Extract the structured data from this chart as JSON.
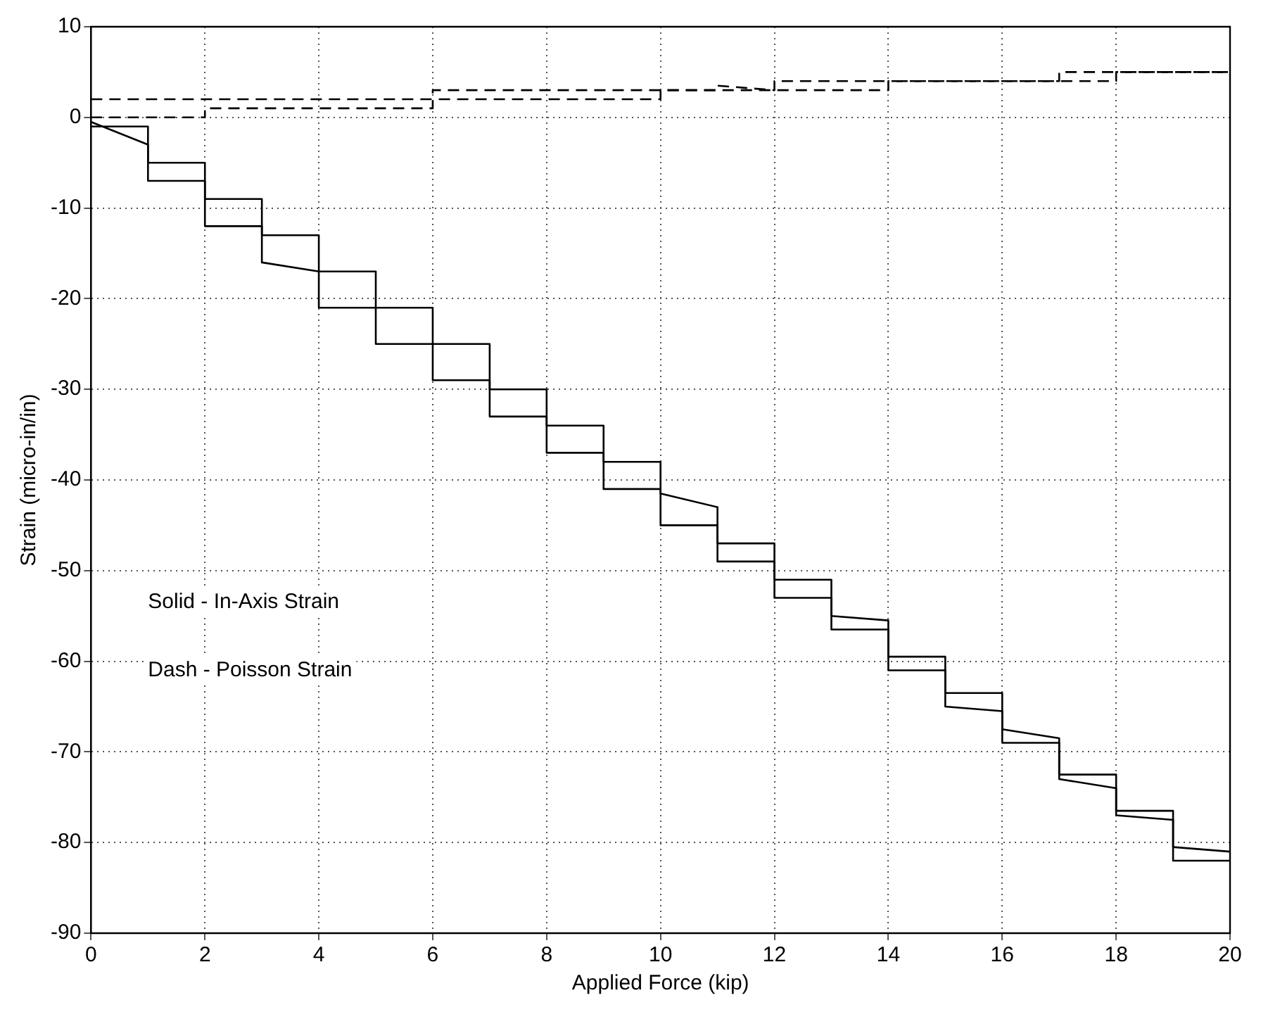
{
  "chart_data": {
    "type": "line",
    "xlabel": "Applied Force (kip)",
    "ylabel": "Strain (micro-in/in)",
    "xlim": [
      0,
      20
    ],
    "xticks": [
      0,
      2,
      4,
      6,
      8,
      10,
      12,
      14,
      16,
      18,
      20
    ],
    "ylim": [
      -90,
      10
    ],
    "yticks": [
      -90,
      -80,
      -70,
      -60,
      -50,
      -40,
      -30,
      -20,
      -10,
      0,
      10
    ],
    "grid": true,
    "legend": false,
    "marker": "none",
    "annotations": [
      "Solid - In-Axis Strain",
      "Dash - Poisson Strain"
    ],
    "series": [
      {
        "color": "#000000",
        "line_style": "solid",
        "x": [
          0,
          1,
          1,
          2,
          2,
          3,
          3,
          4,
          4,
          5,
          5,
          6,
          6,
          7,
          7,
          8,
          8,
          9,
          9,
          10,
          10,
          11,
          11,
          12,
          12,
          13,
          13,
          14,
          14,
          15,
          15,
          16,
          16,
          17,
          17,
          18,
          18,
          19,
          19,
          20
        ],
        "values": [
          -0.5,
          -3,
          -5,
          -5,
          -9,
          -9,
          -13,
          -13,
          -17,
          -17,
          -21,
          -21,
          -25,
          -25,
          -30,
          -30,
          -34,
          -34,
          -38,
          -38,
          -41.5,
          -43,
          -47,
          -47,
          -51,
          -51,
          -55,
          -55.5,
          -59.5,
          -59.5,
          -63.5,
          -63.5,
          -67.5,
          -68.5,
          -72.5,
          -72.5,
          -76.5,
          -76.5,
          -80.5,
          -81
        ]
      },
      {
        "color": "#000000",
        "line_style": "solid",
        "x": [
          0,
          1,
          1,
          2,
          2,
          3,
          3,
          4,
          4,
          5,
          5,
          6,
          6,
          7,
          7,
          8,
          8,
          9,
          9,
          10,
          10,
          11,
          11,
          12,
          12,
          13,
          13,
          14,
          14,
          15,
          15,
          16,
          16,
          17,
          17,
          18,
          18,
          19,
          19,
          20
        ],
        "values": [
          -1,
          -1,
          -7,
          -7,
          -12,
          -12,
          -16,
          -17,
          -21,
          -21,
          -25,
          -25,
          -29,
          -29,
          -33,
          -33,
          -37,
          -37,
          -41,
          -41,
          -45,
          -45,
          -49,
          -49,
          -53,
          -53,
          -56.5,
          -56.5,
          -61,
          -61,
          -65,
          -65.5,
          -69,
          -69,
          -73,
          -74,
          -77,
          -77.5,
          -82,
          -82
        ]
      },
      {
        "color": "#000000",
        "line_style": "dashed",
        "x": [
          0,
          6,
          6,
          11,
          11,
          12,
          12,
          17,
          17,
          20
        ],
        "values": [
          2,
          2,
          3,
          3,
          3.5,
          3,
          4,
          4,
          5,
          5
        ]
      },
      {
        "color": "#000000",
        "line_style": "dashed",
        "x": [
          0,
          2,
          2,
          6,
          6,
          10,
          10,
          14,
          14,
          18,
          18,
          20
        ],
        "values": [
          0,
          0,
          1,
          1,
          2,
          2,
          3,
          3,
          4,
          4,
          5,
          5
        ]
      }
    ]
  }
}
